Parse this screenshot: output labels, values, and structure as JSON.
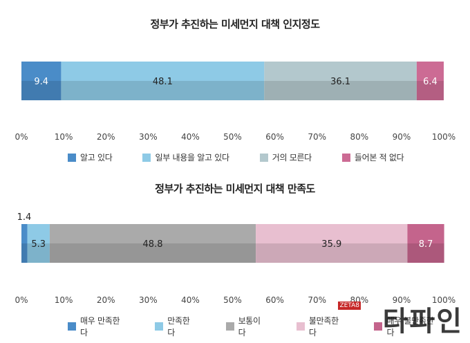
{
  "chart_data": [
    {
      "type": "bar",
      "orientation": "horizontal-stacked-100",
      "title": "정부가 추진하는 미세먼지 대책 인지정도",
      "categories": [
        ""
      ],
      "series": [
        {
          "name": "알고 있다",
          "values": [
            9.4
          ],
          "color": "#4a8cc8"
        },
        {
          "name": "일부 내용을 알고 있다",
          "values": [
            48.1
          ],
          "color": "#8ecae6"
        },
        {
          "name": "거의 모른다",
          "values": [
            36.1
          ],
          "color": "#b3c8cd"
        },
        {
          "name": "들어본 적 없다",
          "values": [
            6.4
          ],
          "color": "#cc6b94"
        }
      ],
      "xlim": [
        0,
        100
      ],
      "xticks": [
        "0%",
        "10%",
        "20%",
        "30%",
        "40%",
        "50%",
        "60%",
        "70%",
        "80%",
        "90%",
        "100%"
      ],
      "legend": "bottom",
      "grid": false
    },
    {
      "type": "bar",
      "orientation": "horizontal-stacked-100",
      "title": "정부가 추진하는 미세먼지 대책 만족도",
      "categories": [
        ""
      ],
      "series": [
        {
          "name": "매우 만족한다",
          "values": [
            1.4
          ],
          "color": "#4a8cc8"
        },
        {
          "name": "만족한다",
          "values": [
            5.3
          ],
          "color": "#8ecae6"
        },
        {
          "name": "보통이다",
          "values": [
            48.8
          ],
          "color": "#aaaaaa"
        },
        {
          "name": "불만족한다",
          "values": [
            35.9
          ],
          "color": "#e8bfd0"
        },
        {
          "name": "매우 불만족한다",
          "values": [
            8.7
          ],
          "color": "#c4648c"
        }
      ],
      "xlim": [
        0,
        100
      ],
      "xticks": [
        "0%",
        "10%",
        "20%",
        "30%",
        "40%",
        "50%",
        "60%",
        "70%",
        "80%",
        "90%",
        "100%"
      ],
      "legend": "bottom",
      "grid": false
    }
  ],
  "watermark": {
    "text": "타파인",
    "small": "ZETA8"
  }
}
